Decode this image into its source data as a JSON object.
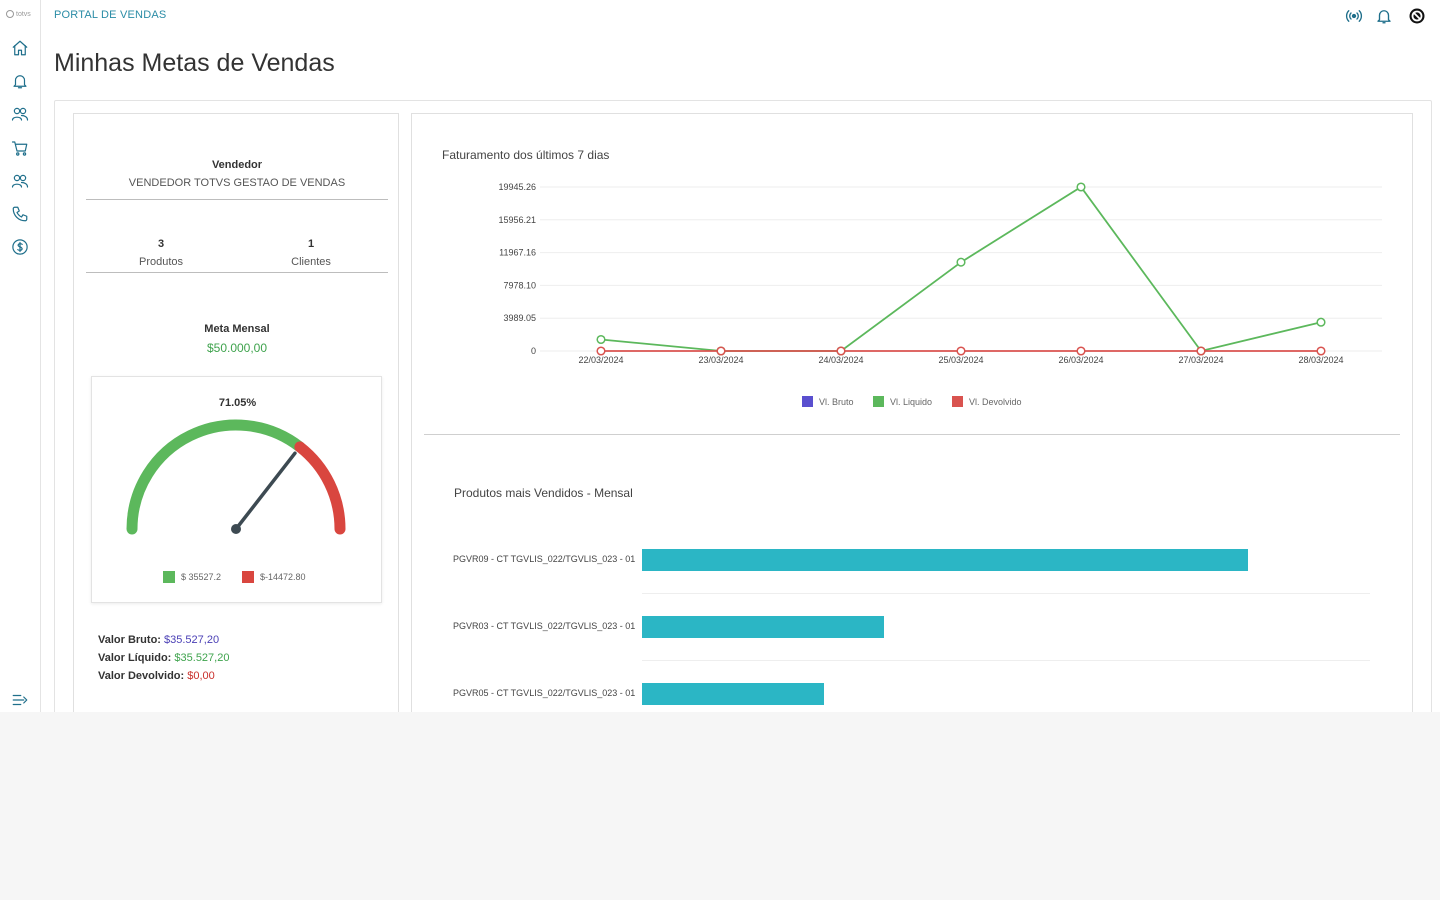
{
  "header": {
    "portal_title": "PORTAL DE VENDAS",
    "logo_text": "totvs",
    "page_title": "Minhas Metas de Vendas",
    "icons": [
      "broadcast-icon",
      "bell-icon",
      "user-circle-icon"
    ]
  },
  "sidebar": {
    "items": [
      {
        "icon": "home-icon"
      },
      {
        "icon": "bell-icon"
      },
      {
        "icon": "users-icon"
      },
      {
        "icon": "cart-icon"
      },
      {
        "icon": "customers-icon"
      },
      {
        "icon": "phone-icon"
      },
      {
        "icon": "dollar-icon"
      }
    ],
    "collapse_icon": "collapse-menu-icon"
  },
  "seller": {
    "label": "Vendedor",
    "name": "VENDEDOR TOTVS GESTAO DE VENDAS",
    "products_count": "3",
    "products_label": "Produtos",
    "clients_count": "1",
    "clients_label": "Clientes",
    "goal_label": "Meta Mensal",
    "goal_value": "$50.000,00"
  },
  "gauge": {
    "percent_label": "71.05%",
    "percent": 71.05,
    "legend": [
      {
        "label": "$ 35527.2",
        "color": "#5cb85c"
      },
      {
        "label": "$-14472.80",
        "color": "#d9463f"
      }
    ]
  },
  "totals": {
    "bruto_label": "Valor Bruto:",
    "bruto_value": "$35.527,20",
    "liquido_label": "Valor Líquido:",
    "liquido_value": "$35.527,20",
    "devolvido_label": "Valor Devolvido:",
    "devolvido_value": "$0,00",
    "colors": {
      "bruto": "#4a3fb5",
      "liquido": "#3fa34d",
      "devolvido": "#c9302c"
    }
  },
  "line_chart": {
    "title": "Faturamento dos últimos 7 dias",
    "chart_data": {
      "type": "line",
      "x": [
        "22/03/2024",
        "23/03/2024",
        "24/03/2024",
        "25/03/2024",
        "26/03/2024",
        "27/03/2024",
        "28/03/2024"
      ],
      "y_ticks": [
        "19945.26",
        "15956.21",
        "11967.16",
        "7978.10",
        "3989.05",
        "0"
      ],
      "ylim": [
        0,
        19945.26
      ],
      "series": [
        {
          "name": "Vl. Bruto",
          "color": "#5a4fcf",
          "values": [
            1400,
            0,
            0,
            10800,
            19945.26,
            0,
            3500
          ]
        },
        {
          "name": "Vl. Liquido",
          "color": "#5cb85c",
          "values": [
            1400,
            0,
            0,
            10800,
            19945.26,
            0,
            3500
          ]
        },
        {
          "name": "Vl. Devolvido",
          "color": "#d9534f",
          "values": [
            0,
            0,
            0,
            0,
            0,
            0,
            0
          ]
        }
      ],
      "legend_position": "bottom"
    }
  },
  "bar_chart": {
    "title": "Produtos mais Vendidos - Mensal",
    "chart_data": {
      "type": "bar",
      "orientation": "horizontal",
      "categories": [
        "PGVR09 - CT TGVLIS_022/TGVLIS_023 - 01",
        "PGVR03 - CT TGVLIS_022/TGVLIS_023 - 01",
        "PGVR05 - CT TGVLIS_022/TGVLIS_023 - 01"
      ],
      "values": [
        100,
        40,
        30
      ],
      "color": "#2bb6c5"
    }
  }
}
